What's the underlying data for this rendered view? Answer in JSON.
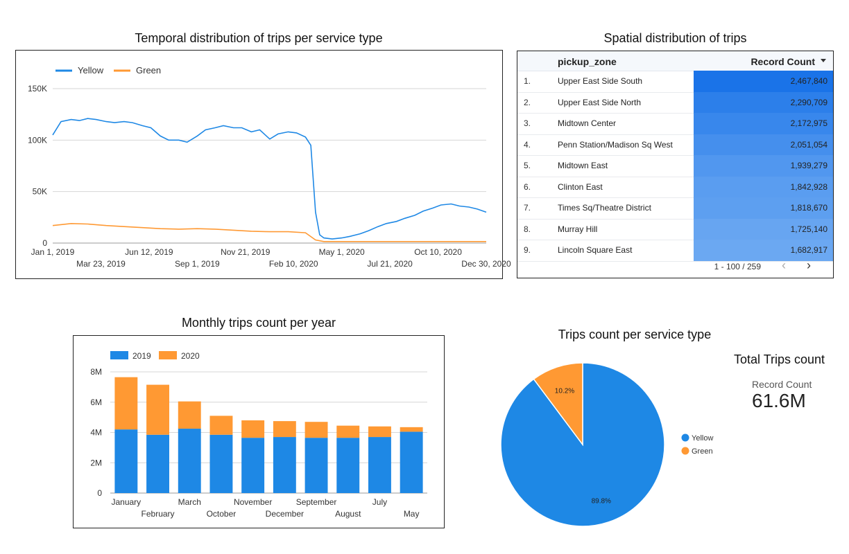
{
  "titles": {
    "temporal": "Temporal distribution of trips per service type",
    "spatial": "Spatial distribution of trips",
    "monthly": "Monthly trips count per year",
    "pie": "Trips count per service type",
    "total": "Total Trips count"
  },
  "colors": {
    "yellow": "#1e88e5",
    "green": "#ff9933",
    "cell_max": "#1a73e8",
    "cell_min": "#6ba8f2"
  },
  "chart_data": [
    {
      "type": "line",
      "title": "Temporal distribution of trips per service type",
      "legend_position": "top-left",
      "x_range": [
        "2019-01-01",
        "2020-12-30"
      ],
      "x_ticks_row1": [
        "Jan 1, 2019",
        "Jun 12, 2019",
        "Nov 21, 2019",
        "May 1, 2020",
        "Oct 10, 2020"
      ],
      "x_ticks_row2": [
        "Mar 23, 2019",
        "Sep 1, 2019",
        "Feb 10, 2020",
        "Jul 21, 2020",
        "Dec 30, 2020"
      ],
      "y_ticks": [
        "0",
        "50K",
        "100K",
        "150K"
      ],
      "ylim": [
        0,
        150000
      ],
      "grid": true,
      "series": [
        {
          "name": "Yellow",
          "points": [
            [
              "2019-01-01",
              105000
            ],
            [
              "2019-01-15",
              118000
            ],
            [
              "2019-02-01",
              120000
            ],
            [
              "2019-02-15",
              119000
            ],
            [
              "2019-03-01",
              121000
            ],
            [
              "2019-03-15",
              120000
            ],
            [
              "2019-04-01",
              118000
            ],
            [
              "2019-04-15",
              117000
            ],
            [
              "2019-05-01",
              118000
            ],
            [
              "2019-05-15",
              117000
            ],
            [
              "2019-06-01",
              114000
            ],
            [
              "2019-06-15",
              112000
            ],
            [
              "2019-07-01",
              104000
            ],
            [
              "2019-07-15",
              100000
            ],
            [
              "2019-08-01",
              100000
            ],
            [
              "2019-08-15",
              98000
            ],
            [
              "2019-09-01",
              104000
            ],
            [
              "2019-09-15",
              110000
            ],
            [
              "2019-10-01",
              112000
            ],
            [
              "2019-10-15",
              114000
            ],
            [
              "2019-11-01",
              112000
            ],
            [
              "2019-11-15",
              112000
            ],
            [
              "2019-12-01",
              108000
            ],
            [
              "2019-12-15",
              110000
            ],
            [
              "2020-01-01",
              101000
            ],
            [
              "2020-01-15",
              106000
            ],
            [
              "2020-02-01",
              108000
            ],
            [
              "2020-02-15",
              107000
            ],
            [
              "2020-03-01",
              103000
            ],
            [
              "2020-03-10",
              95000
            ],
            [
              "2020-03-18",
              30000
            ],
            [
              "2020-03-25",
              8000
            ],
            [
              "2020-04-01",
              5000
            ],
            [
              "2020-04-15",
              4000
            ],
            [
              "2020-05-01",
              5000
            ],
            [
              "2020-05-15",
              6500
            ],
            [
              "2020-06-01",
              9000
            ],
            [
              "2020-06-15",
              12000
            ],
            [
              "2020-07-01",
              16000
            ],
            [
              "2020-07-15",
              19000
            ],
            [
              "2020-08-01",
              21000
            ],
            [
              "2020-08-15",
              24000
            ],
            [
              "2020-09-01",
              27000
            ],
            [
              "2020-09-15",
              31000
            ],
            [
              "2020-10-01",
              34000
            ],
            [
              "2020-10-15",
              37000
            ],
            [
              "2020-11-01",
              38000
            ],
            [
              "2020-11-15",
              36000
            ],
            [
              "2020-12-01",
              35000
            ],
            [
              "2020-12-15",
              33000
            ],
            [
              "2020-12-30",
              30000
            ]
          ]
        },
        {
          "name": "Green",
          "points": [
            [
              "2019-01-01",
              17000
            ],
            [
              "2019-02-01",
              19000
            ],
            [
              "2019-03-01",
              18500
            ],
            [
              "2019-04-01",
              17000
            ],
            [
              "2019-05-01",
              16000
            ],
            [
              "2019-06-01",
              15000
            ],
            [
              "2019-07-01",
              14000
            ],
            [
              "2019-08-01",
              13500
            ],
            [
              "2019-09-01",
              14000
            ],
            [
              "2019-10-01",
              13500
            ],
            [
              "2019-11-01",
              12500
            ],
            [
              "2019-12-01",
              11500
            ],
            [
              "2020-01-01",
              11000
            ],
            [
              "2020-02-01",
              11000
            ],
            [
              "2020-03-01",
              10000
            ],
            [
              "2020-03-18",
              3000
            ],
            [
              "2020-04-01",
              1500
            ],
            [
              "2020-06-01",
              1500
            ],
            [
              "2020-09-01",
              1500
            ],
            [
              "2020-12-30",
              1500
            ]
          ]
        }
      ]
    },
    {
      "type": "table",
      "title": "Spatial distribution of trips",
      "columns": [
        "pickup_zone",
        "Record Count"
      ],
      "rows": [
        {
          "idx": "1.",
          "zone": "Upper East Side South",
          "count": "2,467,840",
          "value": 2467840
        },
        {
          "idx": "2.",
          "zone": "Upper East Side North",
          "count": "2,290,709",
          "value": 2290709
        },
        {
          "idx": "3.",
          "zone": "Midtown Center",
          "count": "2,172,975",
          "value": 2172975
        },
        {
          "idx": "4.",
          "zone": "Penn Station/Madison Sq West",
          "count": "2,051,054",
          "value": 2051054
        },
        {
          "idx": "5.",
          "zone": "Midtown East",
          "count": "1,939,279",
          "value": 1939279
        },
        {
          "idx": "6.",
          "zone": "Clinton East",
          "count": "1,842,928",
          "value": 1842928
        },
        {
          "idx": "7.",
          "zone": "Times Sq/Theatre District",
          "count": "1,818,670",
          "value": 1818670
        },
        {
          "idx": "8.",
          "zone": "Murray Hill",
          "count": "1,725,140",
          "value": 1725140
        },
        {
          "idx": "9.",
          "zone": "Lincoln Square East",
          "count": "1,682,917",
          "value": 1682917
        }
      ],
      "pagination": "1 - 100 / 259"
    },
    {
      "type": "bar",
      "title": "Monthly trips count per year",
      "stacked": true,
      "legend_position": "top-left",
      "categories": [
        "January",
        "February",
        "March",
        "October",
        "November",
        "December",
        "September",
        "August",
        "July",
        "May"
      ],
      "series": [
        {
          "name": "2019",
          "values": [
            4200000,
            3850000,
            4250000,
            3850000,
            3650000,
            3700000,
            3650000,
            3650000,
            3700000,
            4050000
          ]
        },
        {
          "name": "2020",
          "values": [
            3450000,
            3300000,
            1800000,
            1250000,
            1150000,
            1050000,
            1050000,
            800000,
            700000,
            300000
          ]
        }
      ],
      "y_ticks": [
        "0",
        "2M",
        "4M",
        "6M",
        "8M"
      ],
      "ylim": [
        0,
        8000000
      ],
      "grid": true
    },
    {
      "type": "pie",
      "title": "Trips count per service type",
      "legend_position": "right",
      "slices": [
        {
          "name": "Yellow",
          "value": 89.8,
          "label": "89.8%"
        },
        {
          "name": "Green",
          "value": 10.2,
          "label": "10.2%"
        }
      ]
    }
  ],
  "scorecard": {
    "title": "Total Trips count",
    "label": "Record Count",
    "value": "61.6M"
  }
}
